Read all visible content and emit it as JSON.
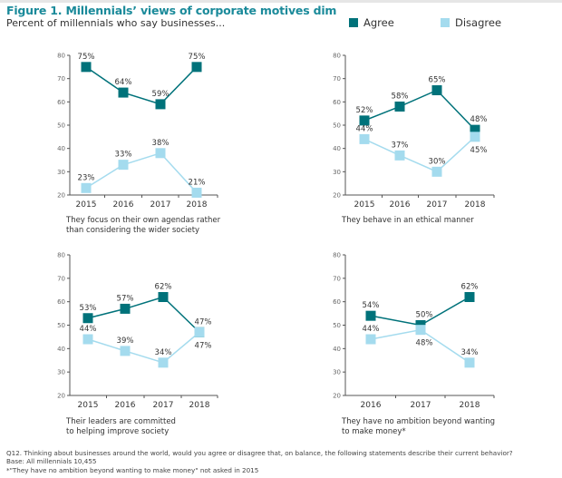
{
  "header": {
    "title": "Figure 1. Millennials’ views of corporate motives dim",
    "subtitle": "Percent of millennials who say businesses..."
  },
  "legend": [
    {
      "label": "Agree",
      "color": "#00727a"
    },
    {
      "label": "Disagree",
      "color": "#a4dbee"
    }
  ],
  "chart_data": [
    {
      "type": "line",
      "title": "They focus on their own agendas rather than considering the wider society",
      "caption_lines": [
        "They focus on their own agendas rather",
        "than considering the wider society"
      ],
      "x": [
        "2015",
        "2016",
        "2017",
        "2018"
      ],
      "ylim": [
        20,
        80
      ],
      "yticks": [
        20,
        30,
        40,
        50,
        60,
        70,
        80
      ],
      "series": [
        {
          "name": "Agree",
          "values": [
            75,
            64,
            59,
            75
          ],
          "labels": [
            "75%",
            "64%",
            "59%",
            "75%"
          ]
        },
        {
          "name": "Disagree",
          "values": [
            23,
            33,
            38,
            21
          ],
          "labels": [
            "23%",
            "33%",
            "38%",
            "21%"
          ]
        }
      ]
    },
    {
      "type": "line",
      "title": "They behave in an ethical manner",
      "caption_lines": [
        "They behave in an ethical manner"
      ],
      "x": [
        "2015",
        "2016",
        "2017",
        "2018"
      ],
      "ylim": [
        20,
        80
      ],
      "yticks": [
        20,
        30,
        40,
        50,
        60,
        70,
        80
      ],
      "series": [
        {
          "name": "Agree",
          "values": [
            52,
            58,
            65,
            48
          ],
          "labels": [
            "52%",
            "58%",
            "65%",
            "48%"
          ]
        },
        {
          "name": "Disagree",
          "values": [
            44,
            37,
            30,
            45
          ],
          "labels": [
            "44%",
            "37%",
            "30%",
            "45%"
          ]
        }
      ]
    },
    {
      "type": "line",
      "title": "Their leaders are committed to helping improve society",
      "caption_lines": [
        "Their leaders are committed",
        "to helping improve society"
      ],
      "x": [
        "2015",
        "2016",
        "2017",
        "2018"
      ],
      "ylim": [
        20,
        80
      ],
      "yticks": [
        20,
        30,
        40,
        50,
        60,
        70,
        80
      ],
      "series": [
        {
          "name": "Agree",
          "values": [
            53,
            57,
            62,
            47
          ],
          "labels": [
            "53%",
            "57%",
            "62%",
            "47%"
          ]
        },
        {
          "name": "Disagree",
          "values": [
            44,
            39,
            34,
            47
          ],
          "labels": [
            "44%",
            "39%",
            "34%",
            "47%"
          ]
        }
      ]
    },
    {
      "type": "line",
      "title": "They have no ambition beyond wanting to make money*",
      "caption_lines": [
        "They have no ambition beyond wanting",
        "to make money*"
      ],
      "x": [
        "2016",
        "2017",
        "2018"
      ],
      "ylim": [
        20,
        80
      ],
      "yticks": [
        20,
        30,
        40,
        50,
        60,
        70,
        80
      ],
      "series": [
        {
          "name": "Agree",
          "values": [
            54,
            50,
            62
          ],
          "labels": [
            "54%",
            "50%",
            "62%"
          ]
        },
        {
          "name": "Disagree",
          "values": [
            44,
            48,
            34
          ],
          "labels": [
            "44%",
            "48%",
            "34%"
          ]
        }
      ]
    }
  ],
  "footer": {
    "question": "Q12. Thinking about businesses around the world, would you agree or disagree that, on balance, the following statements describe their current behavior?",
    "base": "Base: All millennials 10,455",
    "note": "*\"They have no ambition beyond wanting to make money\" not asked in 2015"
  }
}
